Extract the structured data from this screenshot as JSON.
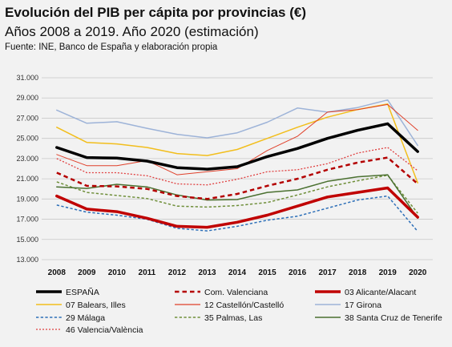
{
  "header": {
    "title": "Evolución del PIB per cápita por provincias (€)",
    "subtitle": "Años 2008 a 2019. Año 2020 (estimación)",
    "source": "Fuente: INE, Banco de España y elaboración propia"
  },
  "chart_data": {
    "type": "line",
    "title": "Evolución del PIB per cápita por provincias (€)",
    "subtitle": "Años 2008 a 2019. Año 2020 (estimación)",
    "xlabel": "",
    "ylabel": "",
    "categories": [
      "2008",
      "2009",
      "2010",
      "2011",
      "2012",
      "2013",
      "2014",
      "2015",
      "2016",
      "2017",
      "2018",
      "2019",
      "2020"
    ],
    "ylim": [
      13000,
      31000
    ],
    "yticks": [
      "13.000",
      "15.000",
      "17.000",
      "19.000",
      "21.000",
      "23.000",
      "25.000",
      "27.000",
      "29.000",
      "31.000"
    ],
    "grid": true,
    "legend_position": "bottom",
    "series": [
      {
        "name": "ESPAÑA",
        "color": "#000000",
        "style": "solid",
        "width": 3.5,
        "values": [
          24100,
          23100,
          23050,
          22750,
          22100,
          21950,
          22200,
          23200,
          24000,
          25000,
          25800,
          26450,
          23700
        ]
      },
      {
        "name": "Com. Valenciana",
        "color": "#b40000",
        "style": "dashed",
        "width": 2.5,
        "values": [
          21600,
          20300,
          20250,
          20000,
          19300,
          19000,
          19500,
          20300,
          21000,
          21900,
          22600,
          23100,
          20500
        ]
      },
      {
        "name": "03 Alicante/Alacant",
        "color": "#c00000",
        "style": "solid",
        "width": 3.5,
        "values": [
          19300,
          18000,
          17750,
          17100,
          16300,
          16200,
          16700,
          17400,
          18300,
          19200,
          19650,
          20100,
          17200
        ]
      },
      {
        "name": "07 Balears, Illes",
        "color": "#f2be1c",
        "style": "solid",
        "width": 1.5,
        "values": [
          26100,
          24600,
          24450,
          24100,
          23500,
          23300,
          23900,
          25000,
          26100,
          27100,
          27850,
          28400,
          20600
        ]
      },
      {
        "name": "12 Castellón/Castelló",
        "color": "#e0402a",
        "style": "solid",
        "width": 1,
        "values": [
          23400,
          22300,
          22300,
          22800,
          21400,
          21700,
          22000,
          23800,
          25200,
          27600,
          27850,
          28350,
          25800
        ]
      },
      {
        "name": "17 Girona",
        "color": "#9db3d8",
        "style": "solid",
        "width": 1.5,
        "values": [
          27800,
          26500,
          26650,
          26000,
          25400,
          25050,
          25550,
          26600,
          28000,
          27600,
          28050,
          28800,
          24300
        ]
      },
      {
        "name": "29 Málaga",
        "color": "#2d6fb8",
        "style": "dashed",
        "width": 1.5,
        "values": [
          18400,
          17700,
          17400,
          17000,
          16100,
          15850,
          16300,
          16900,
          17300,
          18100,
          18900,
          19300,
          15800
        ]
      },
      {
        "name": "35 Palmas, Las",
        "color": "#6f8f3a",
        "style": "dashed",
        "width": 1.5,
        "values": [
          20700,
          19650,
          19350,
          19050,
          18300,
          18200,
          18350,
          18650,
          19400,
          20200,
          20800,
          21350,
          17600
        ]
      },
      {
        "name": "38 Santa Cruz de Tenerife",
        "color": "#4a7030",
        "style": "solid",
        "width": 1.5,
        "values": [
          20200,
          20050,
          20450,
          20200,
          19400,
          18900,
          18950,
          19650,
          19900,
          20750,
          21200,
          21400,
          17100
        ]
      },
      {
        "name": "46 Valencia/València",
        "color": "#e04040",
        "style": "dotted",
        "width": 1.3,
        "values": [
          23000,
          21600,
          21600,
          21300,
          20500,
          20400,
          20950,
          21700,
          21900,
          22500,
          23550,
          24100,
          21800
        ]
      }
    ]
  }
}
